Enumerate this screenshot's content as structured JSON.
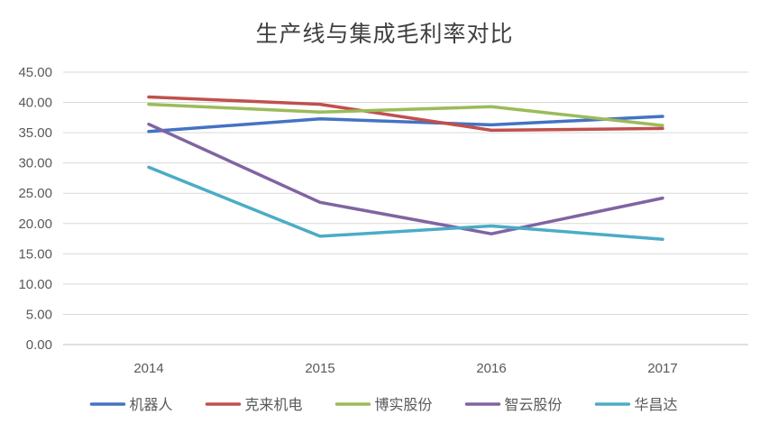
{
  "chart_data": {
    "type": "line",
    "title": "生产线与集成毛利率对比",
    "xlabel": "",
    "ylabel": "",
    "categories": [
      "2014",
      "2015",
      "2016",
      "2017"
    ],
    "ylim": [
      0,
      45
    ],
    "yticks": [
      "0.00",
      "5.00",
      "10.00",
      "15.00",
      "20.00",
      "25.00",
      "30.00",
      "35.00",
      "40.00",
      "45.00"
    ],
    "grid": true,
    "legend_position": "bottom",
    "series": [
      {
        "name": "机器人",
        "color": "#4472C4",
        "values": [
          35.2,
          37.3,
          36.3,
          37.7
        ]
      },
      {
        "name": "克来机电",
        "color": "#C0504D",
        "values": [
          40.9,
          39.7,
          35.4,
          35.7
        ]
      },
      {
        "name": "博实股份",
        "color": "#9BBB59",
        "values": [
          39.7,
          38.4,
          39.3,
          36.2
        ]
      },
      {
        "name": "智云股份",
        "color": "#8064A2",
        "values": [
          36.4,
          23.5,
          18.3,
          24.2
        ]
      },
      {
        "name": "华昌达",
        "color": "#4BACC6",
        "values": [
          29.3,
          17.9,
          19.6,
          17.4
        ]
      }
    ]
  }
}
